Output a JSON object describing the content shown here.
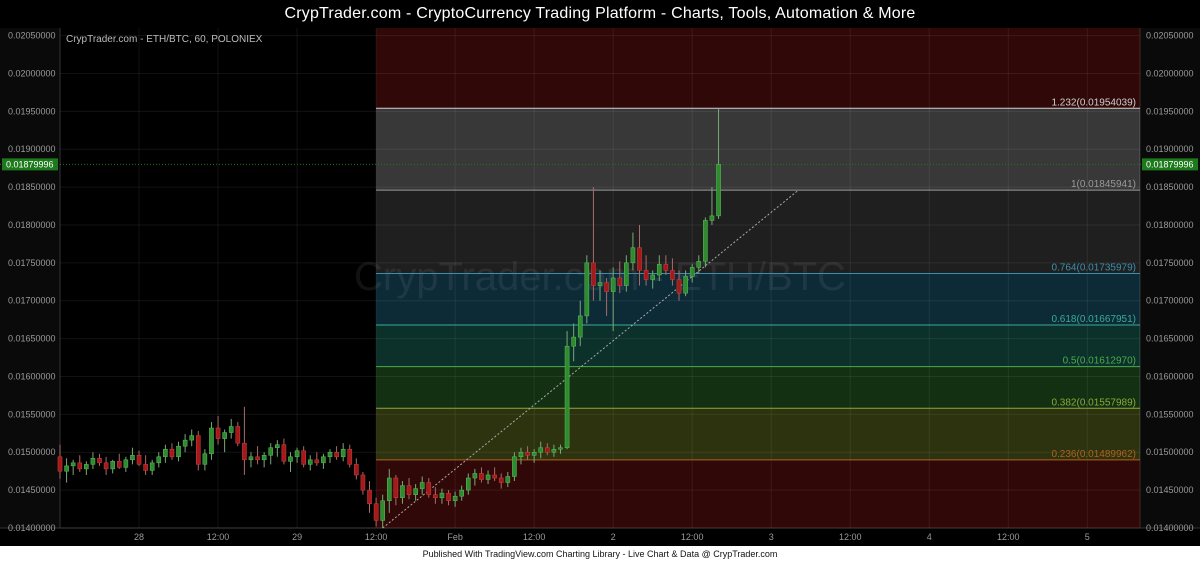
{
  "banner": {
    "title": "CrypTrader.com  -  CryptoCurrency Trading Platform  -  Charts, Tools, Automation & More"
  },
  "footer": {
    "text": "Published With TradingView.com Charting Library - Live Chart & Data @ CrypTrader.com"
  },
  "chart_data": {
    "type": "candlestick",
    "symbol_label": "CrypTrader.com - ETH/BTC, 60, POLONIEX",
    "watermark": "CrypTrader.com - ETH/BTC",
    "colors": {
      "up": "#2e8b2e",
      "down": "#a31a1a",
      "current_price": "#1c7a1c"
    },
    "ylim": [
      0.014,
      0.0206
    ],
    "y_ticks": [
      "0.02050000",
      "0.02000000",
      "0.01950000",
      "0.01900000",
      "0.01850000",
      "0.01800000",
      "0.01750000",
      "0.01700000",
      "0.01650000",
      "0.01600000",
      "0.01550000",
      "0.01500000",
      "0.01450000",
      "0.01400000"
    ],
    "x_ticks": [
      {
        "label": "28",
        "hour": 12
      },
      {
        "label": "12:00",
        "hour": 24
      },
      {
        "label": "29",
        "hour": 36
      },
      {
        "label": "12:00",
        "hour": 48
      },
      {
        "label": "Feb",
        "hour": 60
      },
      {
        "label": "12:00",
        "hour": 72
      },
      {
        "label": "2",
        "hour": 84
      },
      {
        "label": "12:00",
        "hour": 96
      },
      {
        "label": "3",
        "hour": 108
      },
      {
        "label": "12:00",
        "hour": 120
      },
      {
        "label": "4",
        "hour": 132
      },
      {
        "label": "12:00",
        "hour": 144
      },
      {
        "label": "5",
        "hour": 156
      }
    ],
    "x_range": [
      0,
      164
    ],
    "current_price": {
      "value": 0.01879996,
      "label": "0.01879996"
    },
    "fibonacci": {
      "start_hour": 48,
      "end_hour": 164,
      "levels": [
        {
          "ratio": "1.232",
          "value": 0.01954039,
          "label": "1.232(0.01954039)",
          "color": "#d0d0d0"
        },
        {
          "ratio": "1",
          "value": 0.01845941,
          "label": "1(0.01845941)",
          "color": "#9a9a9a"
        },
        {
          "ratio": "0.764",
          "value": 0.01735979,
          "label": "0.764(0.01735979)",
          "color": "#3a8fb0"
        },
        {
          "ratio": "0.618",
          "value": 0.01667951,
          "label": "0.618(0.01667951)",
          "color": "#3aaa9a"
        },
        {
          "ratio": "0.5",
          "value": 0.0161297,
          "label": "0.5(0.01612970)",
          "color": "#4caa4c"
        },
        {
          "ratio": "0.382",
          "value": 0.01557989,
          "label": "0.382(0.01557989)",
          "color": "#8aaa3a"
        },
        {
          "ratio": "0.236",
          "value": 0.01489962,
          "label": "0.236(0.01489962)",
          "color": "#b06020"
        }
      ]
    },
    "trendline": {
      "from": {
        "hour": 49,
        "price": 0.014
      },
      "to": {
        "hour": 112,
        "price": 0.01845
      }
    },
    "candles": [
      [
        0,
        0.01494,
        0.0151,
        0.01465,
        0.01475
      ],
      [
        1,
        0.01475,
        0.01492,
        0.0146,
        0.01482
      ],
      [
        2,
        0.01482,
        0.0149,
        0.0147,
        0.01486
      ],
      [
        3,
        0.01486,
        0.01496,
        0.01474,
        0.01478
      ],
      [
        4,
        0.01478,
        0.01488,
        0.0147,
        0.01484
      ],
      [
        5,
        0.01484,
        0.015,
        0.01478,
        0.01492
      ],
      [
        6,
        0.01492,
        0.01498,
        0.01482,
        0.01486
      ],
      [
        7,
        0.01486,
        0.01494,
        0.0147,
        0.01478
      ],
      [
        8,
        0.01478,
        0.0149,
        0.01472,
        0.01488
      ],
      [
        9,
        0.01488,
        0.01498,
        0.01478,
        0.0148
      ],
      [
        10,
        0.0148,
        0.01494,
        0.01474,
        0.0149
      ],
      [
        11,
        0.0149,
        0.01506,
        0.01484,
        0.01496
      ],
      [
        12,
        0.01496,
        0.01502,
        0.01482,
        0.01484
      ],
      [
        13,
        0.01484,
        0.01496,
        0.0147,
        0.01476
      ],
      [
        14,
        0.01476,
        0.0149,
        0.0147,
        0.01486
      ],
      [
        15,
        0.01486,
        0.015,
        0.0148,
        0.01494
      ],
      [
        16,
        0.01494,
        0.0151,
        0.01486,
        0.01504
      ],
      [
        17,
        0.01504,
        0.01512,
        0.0149,
        0.01494
      ],
      [
        18,
        0.01494,
        0.01514,
        0.01488,
        0.01508
      ],
      [
        19,
        0.01508,
        0.01524,
        0.015,
        0.01516
      ],
      [
        20,
        0.01516,
        0.0153,
        0.01508,
        0.01522
      ],
      [
        21,
        0.01522,
        0.01528,
        0.01476,
        0.01484
      ],
      [
        22,
        0.01484,
        0.01504,
        0.01476,
        0.01498
      ],
      [
        23,
        0.01498,
        0.0154,
        0.0149,
        0.01532
      ],
      [
        24,
        0.01532,
        0.01548,
        0.0151,
        0.01518
      ],
      [
        25,
        0.01518,
        0.0153,
        0.015,
        0.01526
      ],
      [
        26,
        0.01526,
        0.01544,
        0.01518,
        0.01534
      ],
      [
        27,
        0.01534,
        0.0154,
        0.01508,
        0.01512
      ],
      [
        28,
        0.01512,
        0.0156,
        0.0147,
        0.0149
      ],
      [
        29,
        0.0149,
        0.015,
        0.0148,
        0.01494
      ],
      [
        30,
        0.01494,
        0.01508,
        0.01484,
        0.0149
      ],
      [
        31,
        0.0149,
        0.015,
        0.0148,
        0.01496
      ],
      [
        32,
        0.01496,
        0.01512,
        0.01484,
        0.01506
      ],
      [
        33,
        0.01506,
        0.01516,
        0.01494,
        0.0151
      ],
      [
        34,
        0.0151,
        0.01518,
        0.01484,
        0.01488
      ],
      [
        35,
        0.01488,
        0.015,
        0.01474,
        0.01494
      ],
      [
        36,
        0.01494,
        0.01506,
        0.01486,
        0.01502
      ],
      [
        37,
        0.01502,
        0.01508,
        0.0148,
        0.01484
      ],
      [
        38,
        0.01484,
        0.01496,
        0.01476,
        0.0149
      ],
      [
        39,
        0.0149,
        0.015,
        0.01482,
        0.01486
      ],
      [
        40,
        0.01486,
        0.01498,
        0.01478,
        0.01494
      ],
      [
        41,
        0.01494,
        0.01504,
        0.01486,
        0.015
      ],
      [
        42,
        0.015,
        0.01508,
        0.0149,
        0.01494
      ],
      [
        43,
        0.01494,
        0.01512,
        0.01488,
        0.01504
      ],
      [
        44,
        0.01504,
        0.0151,
        0.0148,
        0.01484
      ],
      [
        45,
        0.01484,
        0.01492,
        0.01464,
        0.0147
      ],
      [
        46,
        0.0147,
        0.01474,
        0.01444,
        0.0145
      ],
      [
        47,
        0.0145,
        0.01462,
        0.0142,
        0.01432
      ],
      [
        48,
        0.01432,
        0.0144,
        0.01402,
        0.0141
      ],
      [
        49,
        0.0141,
        0.01444,
        0.014,
        0.01436
      ],
      [
        50,
        0.01436,
        0.01478,
        0.0142,
        0.01466
      ],
      [
        51,
        0.01466,
        0.0147,
        0.0143,
        0.0144
      ],
      [
        52,
        0.0144,
        0.01462,
        0.01432,
        0.01456
      ],
      [
        53,
        0.01456,
        0.01466,
        0.01438,
        0.01444
      ],
      [
        54,
        0.01444,
        0.01458,
        0.01436,
        0.01452
      ],
      [
        55,
        0.01452,
        0.01468,
        0.01444,
        0.0146
      ],
      [
        56,
        0.0146,
        0.01466,
        0.0144,
        0.01444
      ],
      [
        57,
        0.01444,
        0.01454,
        0.01432,
        0.0144
      ],
      [
        58,
        0.0144,
        0.01452,
        0.01432,
        0.01446
      ],
      [
        59,
        0.01446,
        0.0145,
        0.0143,
        0.01436
      ],
      [
        60,
        0.01436,
        0.01448,
        0.01428,
        0.01442
      ],
      [
        61,
        0.01442,
        0.01456,
        0.01436,
        0.0145
      ],
      [
        62,
        0.0145,
        0.01472,
        0.01444,
        0.01466
      ],
      [
        63,
        0.01466,
        0.01478,
        0.01456,
        0.01472
      ],
      [
        64,
        0.01472,
        0.0148,
        0.0146,
        0.01464
      ],
      [
        65,
        0.01464,
        0.01476,
        0.01458,
        0.0147
      ],
      [
        66,
        0.0147,
        0.0148,
        0.01462,
        0.01466
      ],
      [
        67,
        0.01466,
        0.01472,
        0.01452,
        0.0146
      ],
      [
        68,
        0.0146,
        0.01474,
        0.01454,
        0.01468
      ],
      [
        69,
        0.01468,
        0.015,
        0.01462,
        0.01494
      ],
      [
        70,
        0.01494,
        0.01506,
        0.01484,
        0.015
      ],
      [
        71,
        0.015,
        0.01508,
        0.0149,
        0.01496
      ],
      [
        72,
        0.01496,
        0.01504,
        0.01486,
        0.015
      ],
      [
        73,
        0.015,
        0.01514,
        0.01492,
        0.01506
      ],
      [
        74,
        0.01506,
        0.01512,
        0.01496,
        0.015
      ],
      [
        75,
        0.015,
        0.0151,
        0.01494,
        0.01504
      ],
      [
        76,
        0.01504,
        0.0151,
        0.01498,
        0.01506
      ],
      [
        77,
        0.01506,
        0.0166,
        0.01504,
        0.0164
      ],
      [
        78,
        0.0164,
        0.0167,
        0.0162,
        0.01652
      ],
      [
        79,
        0.01652,
        0.017,
        0.0164,
        0.0168
      ],
      [
        80,
        0.0168,
        0.0176,
        0.0167,
        0.0175
      ],
      [
        81,
        0.0175,
        0.0185,
        0.017,
        0.0172
      ],
      [
        82,
        0.0172,
        0.0174,
        0.017,
        0.01724
      ],
      [
        83,
        0.01724,
        0.0173,
        0.0168,
        0.01712
      ],
      [
        84,
        0.01712,
        0.01744,
        0.0166,
        0.0173
      ],
      [
        85,
        0.0173,
        0.01752,
        0.0171,
        0.0172
      ],
      [
        86,
        0.0172,
        0.0176,
        0.01712,
        0.0175
      ],
      [
        87,
        0.0175,
        0.0179,
        0.0174,
        0.0177
      ],
      [
        88,
        0.0177,
        0.018,
        0.0172,
        0.0174
      ],
      [
        89,
        0.0174,
        0.0176,
        0.0172,
        0.01728
      ],
      [
        90,
        0.01728,
        0.0174,
        0.01716,
        0.01734
      ],
      [
        91,
        0.01734,
        0.0176,
        0.01726,
        0.01748
      ],
      [
        92,
        0.01748,
        0.0176,
        0.01734,
        0.0174
      ],
      [
        93,
        0.0174,
        0.01756,
        0.0172,
        0.01728
      ],
      [
        94,
        0.01728,
        0.0174,
        0.017,
        0.0171
      ],
      [
        95,
        0.0171,
        0.0174,
        0.01706,
        0.01732
      ],
      [
        96,
        0.01732,
        0.01748,
        0.01724,
        0.01744
      ],
      [
        97,
        0.01744,
        0.0176,
        0.01736,
        0.01752
      ],
      [
        98,
        0.01752,
        0.0181,
        0.01744,
        0.01806
      ],
      [
        99,
        0.01806,
        0.0185,
        0.018,
        0.01812
      ],
      [
        100,
        0.01812,
        0.01954,
        0.01808,
        0.0188
      ]
    ]
  }
}
